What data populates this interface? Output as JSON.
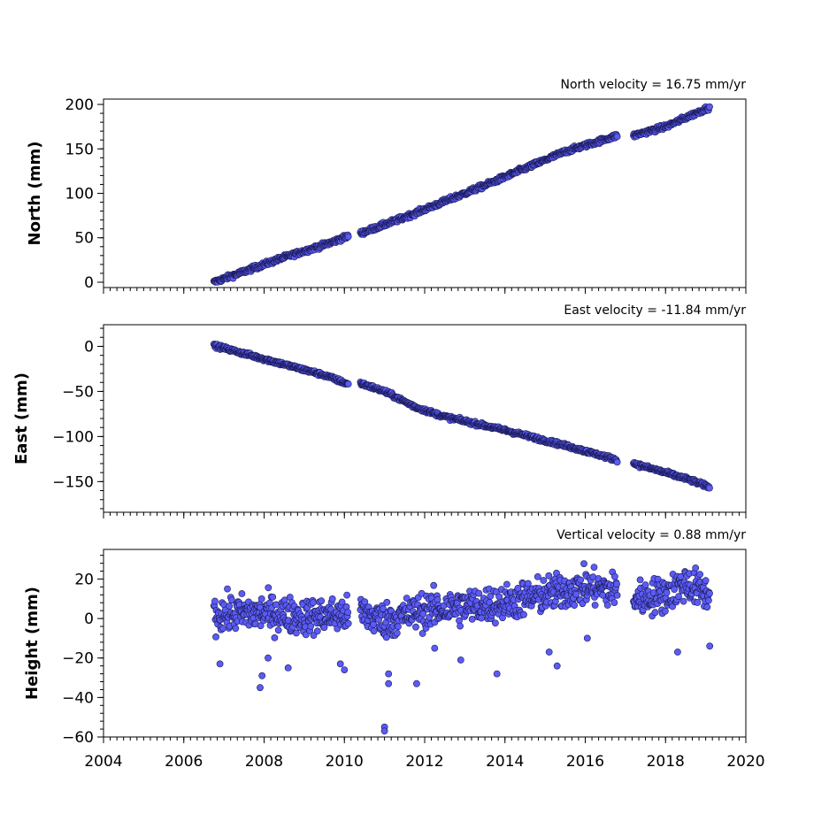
{
  "chart_data": [
    {
      "type": "scatter",
      "title": "North velocity = 16.75 mm/yr",
      "ylabel": "North (mm)",
      "xlabel": "",
      "xlim": [
        2004,
        2020
      ],
      "ylim": [
        -6,
        206
      ],
      "yticks": [
        0,
        50,
        100,
        150,
        200
      ],
      "ytick_labels": [
        "0",
        "50",
        "100",
        "150",
        "200"
      ],
      "show_xtick_labels": false,
      "velocity_mm_per_yr": 16.75,
      "marker_color": "#5b5bf5",
      "segments": [
        {
          "x": [
            2006.75,
            2007.5,
            2008.5,
            2009.5,
            2010.1
          ],
          "y": [
            0,
            12,
            28,
            42,
            52
          ]
        },
        {
          "x": [
            2010.4,
            2011.5,
            2012.5,
            2013.5,
            2014.5,
            2015.5,
            2016.8
          ],
          "y": [
            55,
            73,
            91,
            109,
            128,
            147,
            165
          ]
        },
        {
          "x": [
            2017.2,
            2018.0,
            2018.6,
            2019.1
          ],
          "y": [
            165,
            175,
            187,
            197
          ]
        }
      ]
    },
    {
      "type": "scatter",
      "title": "East velocity = -11.84 mm/yr",
      "ylabel": "East (mm)",
      "xlabel": "",
      "xlim": [
        2004,
        2020
      ],
      "ylim": [
        -184,
        24
      ],
      "yticks": [
        0,
        -50,
        -100,
        -150
      ],
      "ytick_labels": [
        "0",
        "−50",
        "−100",
        "−150"
      ],
      "show_xtick_labels": false,
      "velocity_mm_per_yr": -11.84,
      "marker_color": "#5b5bf5",
      "segments": [
        {
          "x": [
            2006.75,
            2007.5,
            2008.5,
            2009.5,
            2010.1
          ],
          "y": [
            1,
            -8,
            -20,
            -32,
            -42
          ]
        },
        {
          "x": [
            2010.4,
            2011.0,
            2011.8,
            2012.5,
            2014.0,
            2015.5,
            2016.8
          ],
          "y": [
            -41,
            -50,
            -68,
            -78,
            -93,
            -110,
            -126
          ]
        },
        {
          "x": [
            2017.2,
            2018.0,
            2018.6,
            2019.1
          ],
          "y": [
            -130,
            -140,
            -148,
            -156
          ]
        }
      ]
    },
    {
      "type": "scatter",
      "title": "Vertical velocity = 0.88 mm/yr",
      "ylabel": "Height (mm)",
      "xlabel": "",
      "xlim": [
        2004,
        2020
      ],
      "ylim": [
        -60,
        35
      ],
      "yticks": [
        20,
        0,
        -20,
        -40,
        -60
      ],
      "ytick_labels": [
        "20",
        "0",
        "−20",
        "−40",
        "−60"
      ],
      "xticks": [
        2004,
        2006,
        2008,
        2010,
        2012,
        2014,
        2016,
        2018,
        2020
      ],
      "xtick_labels": [
        "2004",
        "2006",
        "2008",
        "2010",
        "2012",
        "2014",
        "2016",
        "2018",
        "2020"
      ],
      "show_xtick_labels": true,
      "velocity_mm_per_yr": 0.88,
      "marker_color": "#5b5bf5",
      "segments": [
        {
          "x": [
            2006.75,
            2008.0,
            2009.0,
            2010.1
          ],
          "y": [
            2,
            3,
            1,
            2
          ]
        },
        {
          "x": [
            2010.4,
            2011.0,
            2012.0,
            2013.0,
            2014.0,
            2015.0,
            2016.0,
            2016.8
          ],
          "y": [
            3,
            -1,
            4,
            6,
            8,
            12,
            16,
            14
          ]
        },
        {
          "x": [
            2017.2,
            2018.0,
            2018.5,
            2019.1
          ],
          "y": [
            10,
            12,
            18,
            12
          ]
        }
      ],
      "outliers": [
        {
          "x": 2006.9,
          "y": -23
        },
        {
          "x": 2007.9,
          "y": -35
        },
        {
          "x": 2007.95,
          "y": -29
        },
        {
          "x": 2008.1,
          "y": -20
        },
        {
          "x": 2008.6,
          "y": -25
        },
        {
          "x": 2009.9,
          "y": -23
        },
        {
          "x": 2010.0,
          "y": -26
        },
        {
          "x": 2011.0,
          "y": -55
        },
        {
          "x": 2011.0,
          "y": -57
        },
        {
          "x": 2011.1,
          "y": -28
        },
        {
          "x": 2011.1,
          "y": -33
        },
        {
          "x": 2011.8,
          "y": -33
        },
        {
          "x": 2012.25,
          "y": -15
        },
        {
          "x": 2012.9,
          "y": -21
        },
        {
          "x": 2013.8,
          "y": -28
        },
        {
          "x": 2015.1,
          "y": -17
        },
        {
          "x": 2015.3,
          "y": -24
        },
        {
          "x": 2016.05,
          "y": -10
        },
        {
          "x": 2018.3,
          "y": -17
        },
        {
          "x": 2019.1,
          "y": -14
        }
      ]
    }
  ]
}
